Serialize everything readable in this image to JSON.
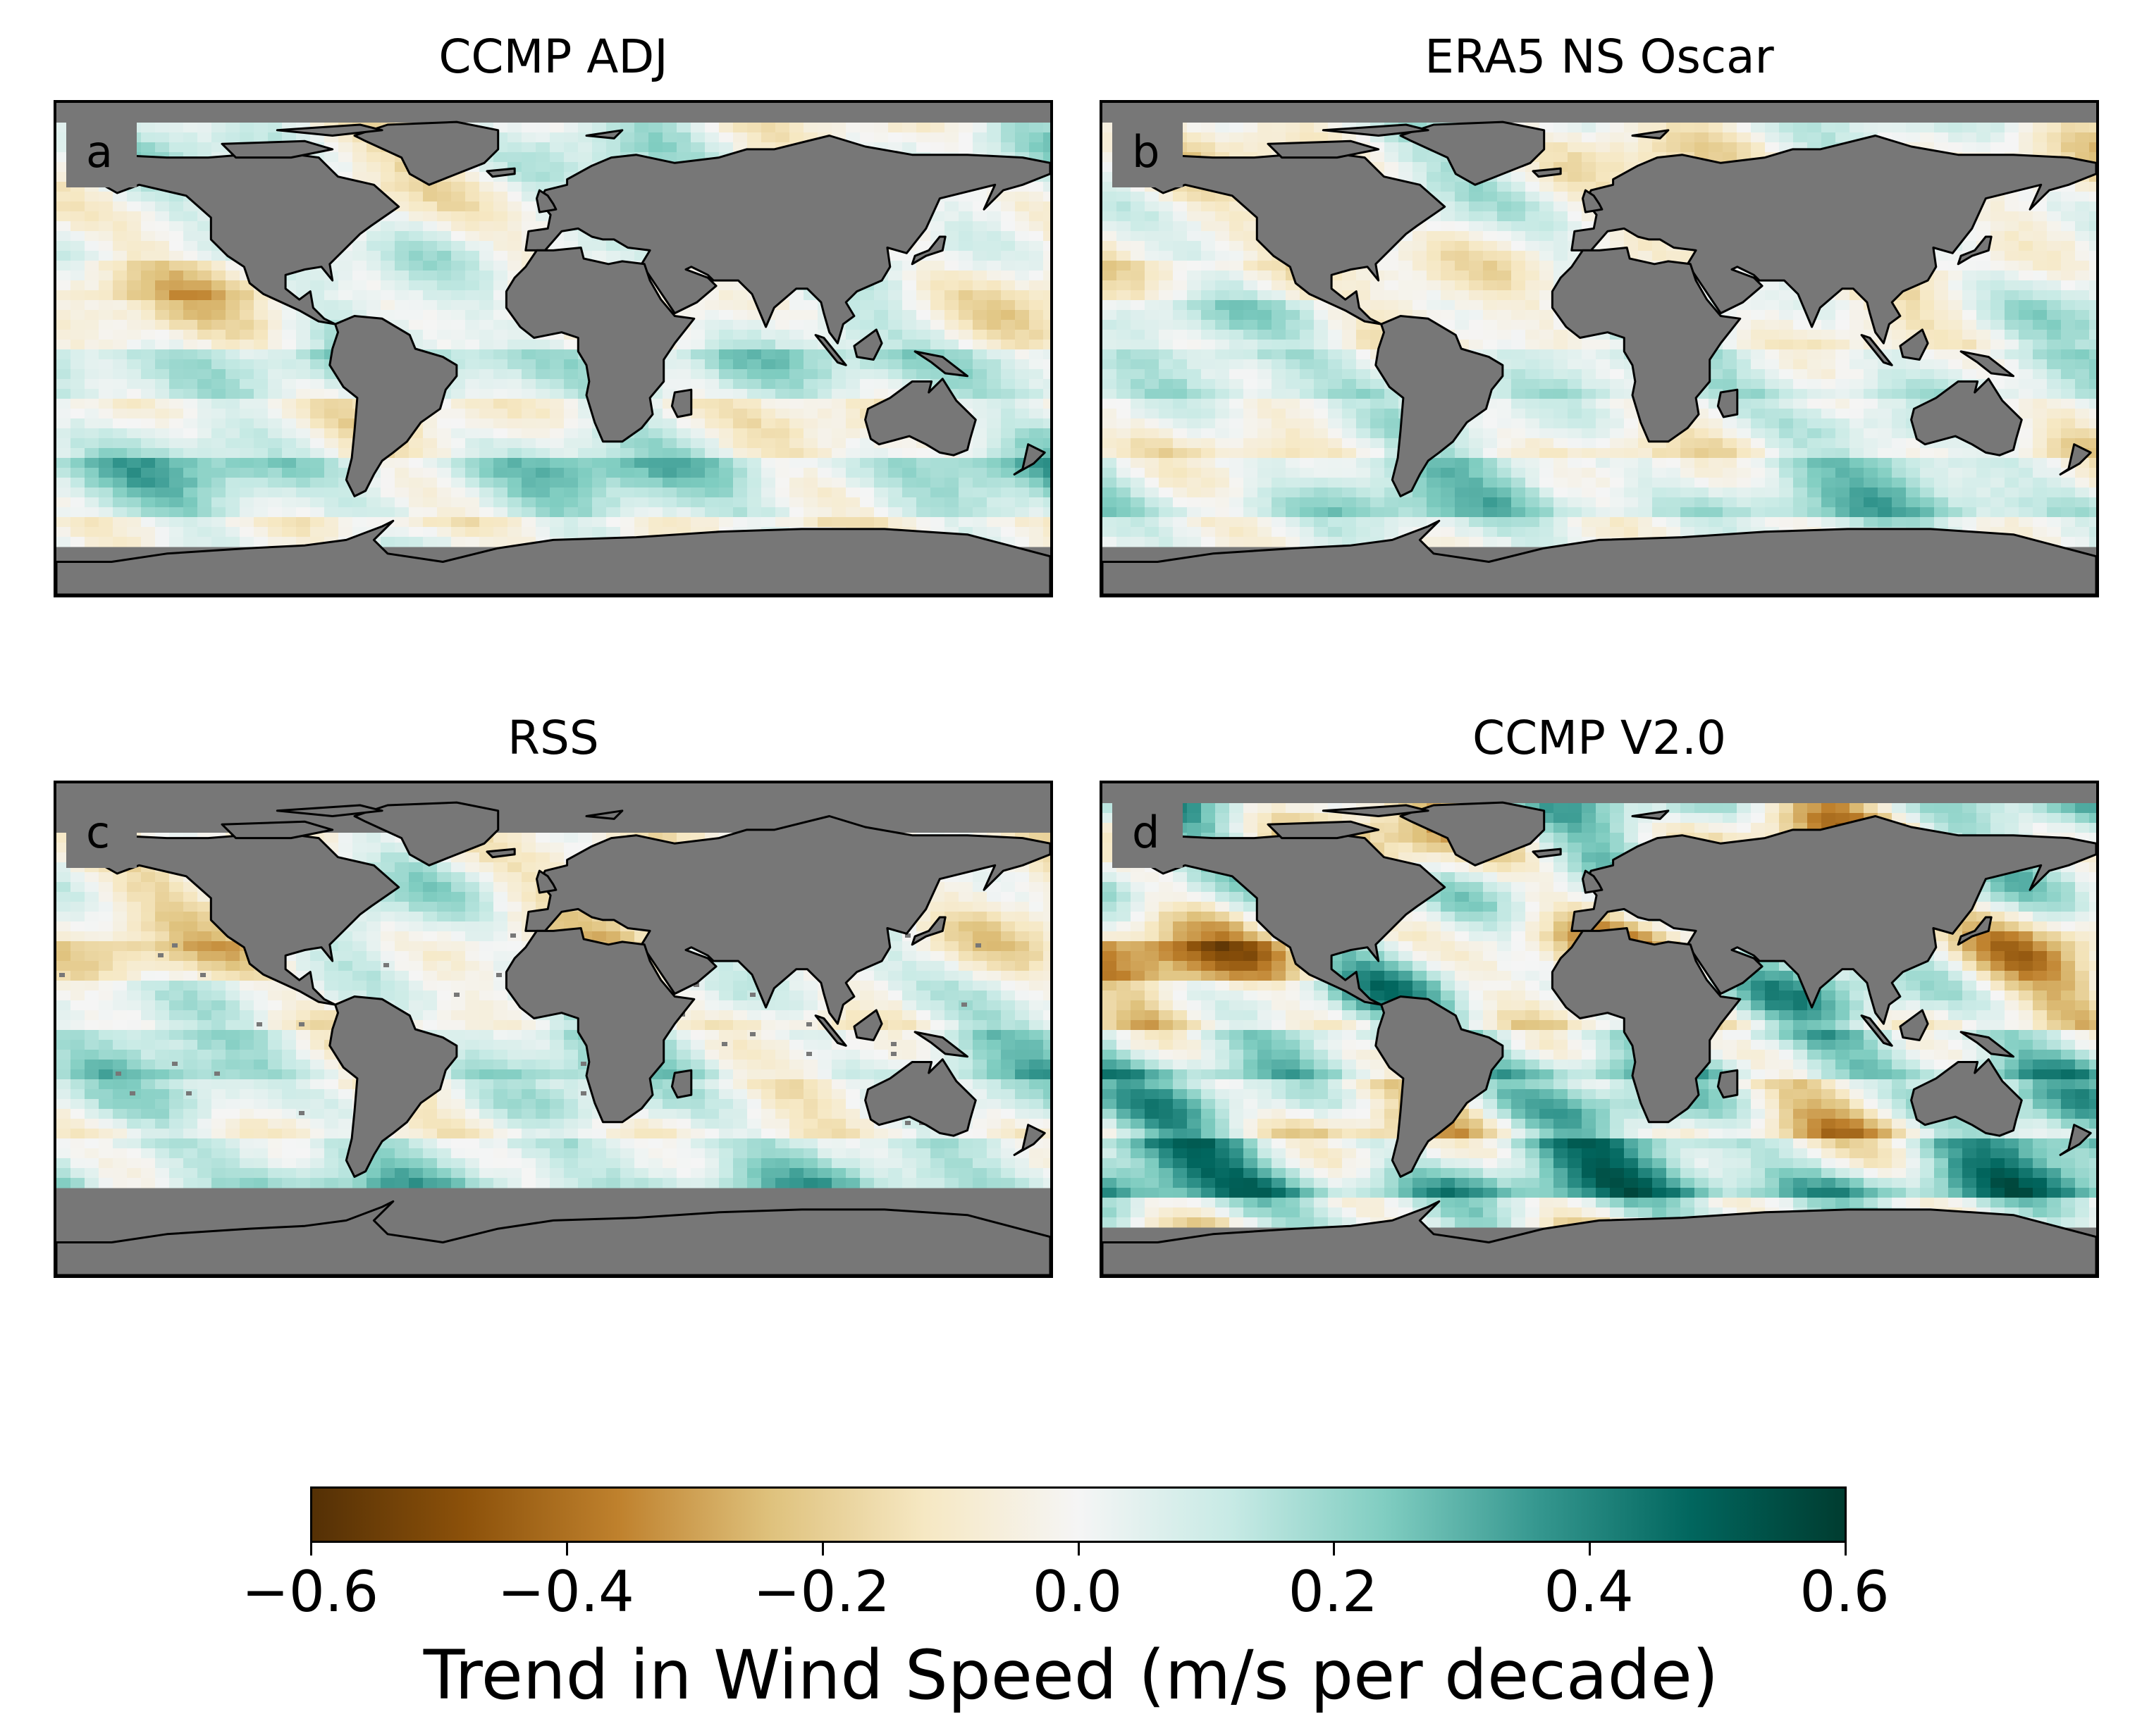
{
  "panels": [
    {
      "id": "a",
      "title": "CCMP ADJ",
      "letter": "a"
    },
    {
      "id": "b",
      "title": "ERA5 NS Oscar",
      "letter": "b"
    },
    {
      "id": "c",
      "title": "RSS",
      "letter": "c"
    },
    {
      "id": "d",
      "title": "CCMP V2.0",
      "letter": "d"
    }
  ],
  "colorbar": {
    "label": "Trend in Wind Speed (m/s per decade)",
    "min": -0.6,
    "max": 0.6,
    "ticks": [
      "−0.6",
      "−0.4",
      "−0.2",
      "0.0",
      "0.2",
      "0.4",
      "0.6"
    ],
    "colors": [
      "#543005",
      "#8c510a",
      "#bf812d",
      "#dfc27d",
      "#f6e8c3",
      "#f5f5f5",
      "#c7eae5",
      "#80cdc1",
      "#35978f",
      "#01665e",
      "#003c30"
    ],
    "land_color": "#777777"
  }
}
